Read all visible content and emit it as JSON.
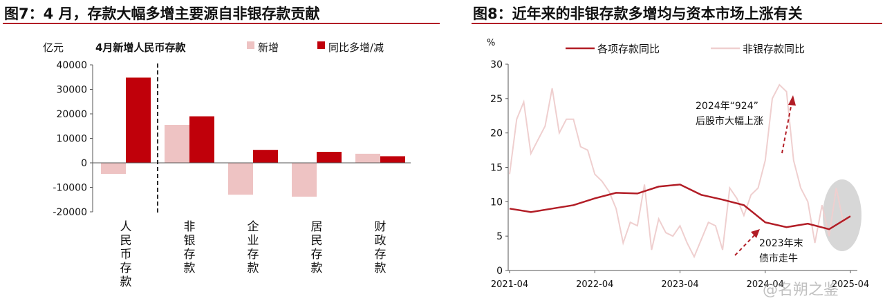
{
  "fig7": {
    "title": "图7：4 月，存款大幅多增主要源自非银存款贡献"
  },
  "fig8": {
    "title": "图8：近年来的非银存款多增均与资本市场上涨有关"
  },
  "watermark": "@名朔之鉴",
  "colors": {
    "accent": "#b21d26",
    "bar_dark": "#c0000a",
    "bar_light": "#eec3c3",
    "line_light": "#efcfcf"
  },
  "chart_data": [
    {
      "type": "bar",
      "title": "4月新增人民币存款",
      "ylabel": "亿元",
      "ylim": [
        -20000,
        40000
      ],
      "y_ticks": [
        "40000",
        "30000",
        "20000",
        "10000",
        "0",
        "-10000",
        "-20000"
      ],
      "categories": [
        "人民币存款",
        "非银存款",
        "企业存款",
        "居民存款",
        "财政存款"
      ],
      "series": [
        {
          "name": "新增",
          "values": [
            -4500,
            15500,
            -13000,
            -13800,
            3700
          ]
        },
        {
          "name": "同比多增/减",
          "values": [
            34800,
            19000,
            5300,
            4500,
            2700
          ]
        }
      ],
      "annotation": "dashed separator after 人民币存款",
      "legend": "top"
    },
    {
      "type": "line",
      "ylabel": "%",
      "ylim": [
        0,
        30
      ],
      "y_ticks": [
        "30",
        "25",
        "20",
        "15",
        "10",
        "5",
        "0"
      ],
      "x_ticks": [
        "2021-04",
        "2022-04",
        "2023-04",
        "2024-04",
        "2025-04"
      ],
      "series": [
        {
          "name": "各项存款同比",
          "x": [
            "2021-04",
            "2021-07",
            "2021-10",
            "2022-01",
            "2022-04",
            "2022-07",
            "2022-10",
            "2023-01",
            "2023-04",
            "2023-07",
            "2023-10",
            "2024-01",
            "2024-04",
            "2024-07",
            "2024-10",
            "2025-01",
            "2025-04"
          ],
          "values": [
            9.0,
            8.5,
            9.0,
            9.5,
            10.5,
            11.3,
            11.2,
            12.2,
            12.5,
            11.0,
            10.3,
            9.5,
            7.0,
            6.3,
            6.8,
            6.0,
            7.9
          ]
        },
        {
          "name": "非银存款同比",
          "x": [
            "2021-04",
            "2021-05",
            "2021-06",
            "2021-07",
            "2021-08",
            "2021-09",
            "2021-10",
            "2021-11",
            "2021-12",
            "2022-01",
            "2022-02",
            "2022-03",
            "2022-04",
            "2022-05",
            "2022-06",
            "2022-07",
            "2022-08",
            "2022-09",
            "2022-10",
            "2022-11",
            "2022-12",
            "2023-01",
            "2023-02",
            "2023-03",
            "2023-04",
            "2023-05",
            "2023-06",
            "2023-07",
            "2023-08",
            "2023-09",
            "2023-10",
            "2023-11",
            "2023-12",
            "2024-01",
            "2024-02",
            "2024-03",
            "2024-04",
            "2024-05",
            "2024-06",
            "2024-07",
            "2024-08",
            "2024-09",
            "2024-10",
            "2024-11",
            "2024-12",
            "2025-01",
            "2025-02",
            "2025-03",
            "2025-04"
          ],
          "values": [
            14,
            22,
            24.5,
            17,
            19,
            21,
            26.5,
            20,
            22,
            22,
            18,
            17.5,
            14,
            13,
            11.5,
            9,
            4,
            7,
            6.5,
            12.5,
            3,
            7.5,
            5.5,
            5,
            6.5,
            4,
            2,
            4.5,
            7,
            6.5,
            3,
            12,
            10.5,
            8,
            11,
            12,
            16,
            25,
            27,
            26,
            16,
            12,
            10,
            4,
            9.5,
            5,
            12,
            7,
            8
          ]
        }
      ],
      "annotations": [
        "2024年“924”",
        "后股市大幅上涨",
        "2023年末",
        "债市走牛"
      ],
      "legend": "top"
    }
  ]
}
